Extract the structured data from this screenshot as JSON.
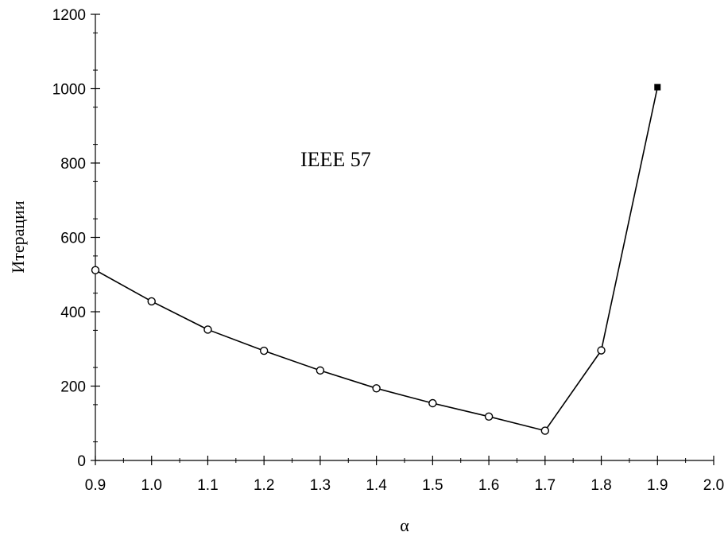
{
  "chart_data": {
    "type": "line",
    "title": "",
    "xlabel": "α",
    "ylabel": "Итерации",
    "annotation": "IEEE 57",
    "xlim": [
      0.9,
      2.0
    ],
    "ylim": [
      0,
      1200
    ],
    "x_ticks": [
      "0.9",
      "1.0",
      "1.1",
      "1.2",
      "1.3",
      "1.4",
      "1.5",
      "1.6",
      "1.7",
      "1.8",
      "1.9",
      "2.0"
    ],
    "y_ticks": [
      "0",
      "200",
      "400",
      "600",
      "800",
      "1000",
      "1200"
    ],
    "grid": false,
    "legend": "none",
    "series": [
      {
        "points": [
          {
            "x": 0.9,
            "y": 512,
            "marker": "open-circle"
          },
          {
            "x": 1.0,
            "y": 428,
            "marker": "open-circle"
          },
          {
            "x": 1.1,
            "y": 352,
            "marker": "open-circle"
          },
          {
            "x": 1.2,
            "y": 295,
            "marker": "open-circle"
          },
          {
            "x": 1.3,
            "y": 242,
            "marker": "open-circle"
          },
          {
            "x": 1.4,
            "y": 194,
            "marker": "open-circle"
          },
          {
            "x": 1.5,
            "y": 154,
            "marker": "open-circle"
          },
          {
            "x": 1.6,
            "y": 118,
            "marker": "open-circle"
          },
          {
            "x": 1.7,
            "y": 80,
            "marker": "open-circle"
          },
          {
            "x": 1.8,
            "y": 296,
            "marker": "open-circle"
          },
          {
            "x": 1.9,
            "y": 1004,
            "marker": "filled-square"
          }
        ]
      }
    ],
    "colors": {
      "line": "#000000",
      "marker_fill": "#ffffff",
      "square_fill": "#000000"
    }
  }
}
